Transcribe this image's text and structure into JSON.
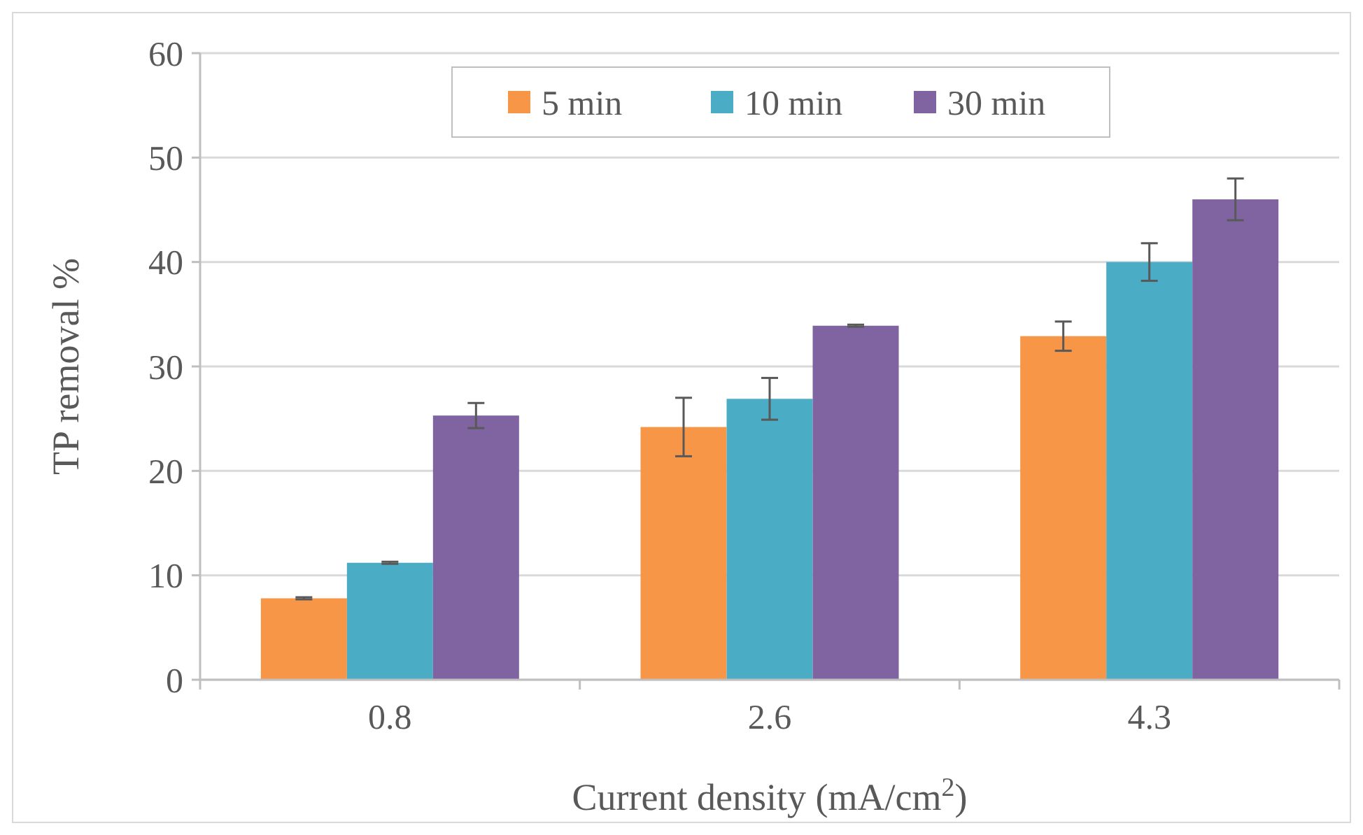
{
  "chart_data": {
    "type": "bar",
    "xlabel": "Current density (mA/cm$^{2}$)",
    "ylabel": "TP removal %",
    "categories": [
      "0.8",
      "2.6",
      "4.3"
    ],
    "series": [
      {
        "name": "5 min",
        "color": "#f79646",
        "values": [
          7.8,
          24.2,
          32.9
        ],
        "errors": [
          0.1,
          2.8,
          1.4
        ]
      },
      {
        "name": "10 min",
        "color": "#4bacc6",
        "values": [
          11.2,
          26.9,
          40.0
        ],
        "errors": [
          0.1,
          2.0,
          1.8
        ]
      },
      {
        "name": "30 min",
        "color": "#8064a2",
        "values": [
          25.3,
          33.9,
          46.0
        ],
        "errors": [
          1.2,
          0.1,
          2.0
        ]
      }
    ],
    "ylim": [
      0,
      60
    ],
    "yticks": [
      0,
      10,
      20,
      30,
      40,
      50,
      60
    ],
    "grid": "y",
    "legend": "top"
  }
}
